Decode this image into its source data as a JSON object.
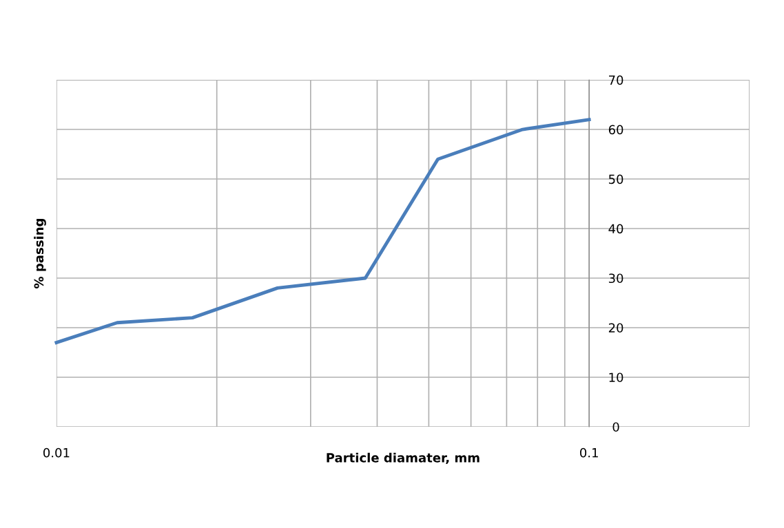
{
  "chart_data": {
    "type": "line",
    "xlabel": "Particle diamater, mm",
    "ylabel": "% passing",
    "log": "x",
    "x": [
      0.01,
      0.013,
      0.018,
      0.026,
      0.038,
      0.052,
      0.075,
      0.1
    ],
    "series": [
      {
        "color": "#4a7ebb",
        "values": [
          17,
          21,
          22,
          28,
          30,
          54,
          60,
          62
        ]
      }
    ],
    "xlim": [
      0.01,
      0.2
    ],
    "xticks": [
      0.01,
      {
        "value": 0.02,
        "label": null
      },
      {
        "value": 0.03,
        "label": null
      },
      {
        "value": 0.04,
        "label": null
      },
      {
        "value": 0.05,
        "label": null
      },
      {
        "value": 0.06,
        "label": null
      },
      {
        "value": 0.07,
        "label": null
      },
      {
        "value": 0.08,
        "label": null
      },
      {
        "value": 0.09,
        "label": null
      },
      0.1,
      {
        "value": 0.2,
        "label": null
      }
    ],
    "ylim": [
      0,
      70
    ],
    "yticks": [
      0,
      10,
      20,
      30,
      40,
      50,
      60,
      70
    ],
    "grid": true,
    "marker": "none",
    "line_style": "solid"
  }
}
